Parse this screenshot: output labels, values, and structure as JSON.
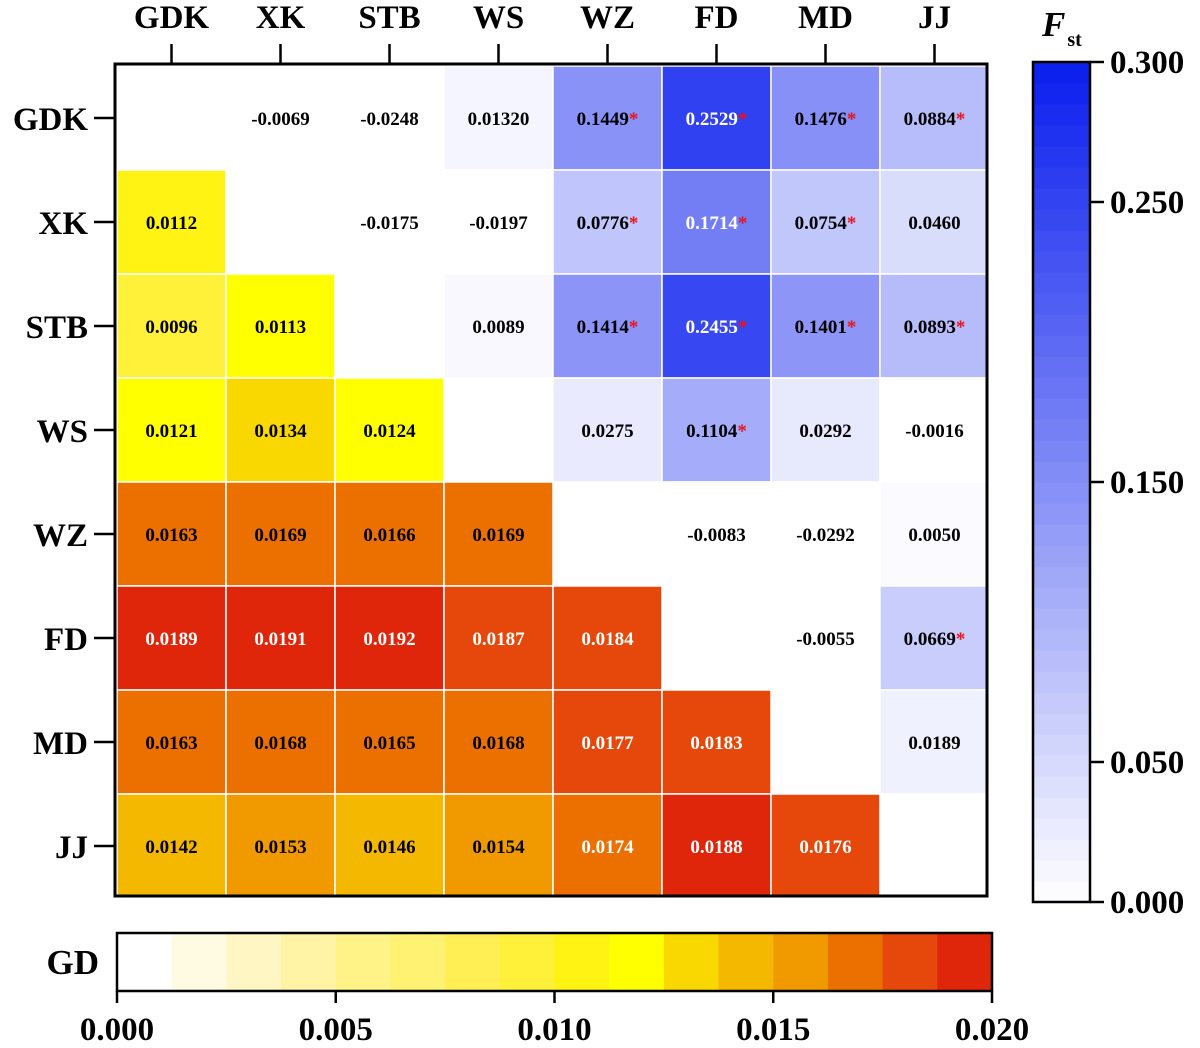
{
  "chart_data": {
    "type": "heatmap",
    "title": "",
    "populations": [
      "GDK",
      "XK",
      "STB",
      "WS",
      "WZ",
      "FD",
      "MD",
      "JJ"
    ],
    "upper_triangle_metric": "Fst",
    "lower_triangle_metric": "GD",
    "matrix": [
      [
        null,
        "-0.0069",
        "-0.0248",
        "0.01320",
        "0.1449",
        "0.2529",
        "0.1476",
        "0.0884"
      ],
      [
        "0.0112",
        null,
        "-0.0175",
        "-0.0197",
        "0.0776",
        "0.1714",
        "0.0754",
        "0.0460"
      ],
      [
        "0.0096",
        "0.0113",
        null,
        "0.0089",
        "0.1414",
        "0.2455",
        "0.1401",
        "0.0893"
      ],
      [
        "0.0121",
        "0.0134",
        "0.0124",
        null,
        "0.0275",
        "0.1104",
        "0.0292",
        "-0.0016"
      ],
      [
        "0.0163",
        "0.0169",
        "0.0166",
        "0.0169",
        null,
        "-0.0083",
        "-0.0292",
        "0.0050"
      ],
      [
        "0.0189",
        "0.0191",
        "0.0192",
        "0.0187",
        "0.0184",
        null,
        "-0.0055",
        "0.0669"
      ],
      [
        "0.0163",
        "0.0168",
        "0.0165",
        "0.0168",
        "0.0177",
        "0.0183",
        null,
        "0.0189"
      ],
      [
        "0.0142",
        "0.0153",
        "0.0146",
        "0.0154",
        "0.0174",
        "0.0188",
        "0.0176",
        null
      ]
    ],
    "significant": [
      [
        false,
        false,
        false,
        false,
        true,
        true,
        true,
        true
      ],
      [
        false,
        false,
        false,
        false,
        true,
        true,
        true,
        false
      ],
      [
        false,
        false,
        false,
        false,
        true,
        true,
        true,
        true
      ],
      [
        false,
        false,
        false,
        false,
        false,
        true,
        false,
        false
      ],
      [
        false,
        false,
        false,
        false,
        false,
        false,
        false,
        false
      ],
      [
        false,
        false,
        false,
        false,
        false,
        false,
        false,
        true
      ],
      [
        false,
        false,
        false,
        false,
        false,
        false,
        false,
        false
      ],
      [
        false,
        false,
        false,
        false,
        false,
        false,
        false,
        false
      ]
    ],
    "significance_marker": "*",
    "fst_legend": {
      "title_main": "F",
      "title_sub": "st",
      "range": [
        0,
        0.3
      ],
      "ticks": [
        0.0,
        0.05,
        0.15,
        0.25,
        0.3
      ],
      "tick_labels": [
        "0.000",
        "0.050",
        "0.150",
        "0.250",
        "0.300"
      ]
    },
    "gd_legend": {
      "title": "GD",
      "range": [
        0,
        0.02
      ],
      "ticks": [
        0,
        0.005,
        0.01,
        0.015,
        0.02
      ],
      "tick_labels": [
        "0.000",
        "0.005",
        "0.010",
        "0.015",
        "0.020"
      ]
    }
  },
  "colors": {
    "fst_low": "#ffffff",
    "fst_high": "#0a1eee",
    "gd_stops": [
      "#ffffff",
      "#fffbe3",
      "#fff6c4",
      "#fff3a6",
      "#fff388",
      "#fff172",
      "#ffef54",
      "#fff13a",
      "#fff314",
      "#ffff00",
      "#f8d800",
      "#f5b800",
      "#f09a00",
      "#ec7000",
      "#e5480a",
      "#df250a",
      "#d80000"
    ],
    "significance": "#e8131e",
    "text_dark": "#000000",
    "text_light": "#ffffff"
  }
}
